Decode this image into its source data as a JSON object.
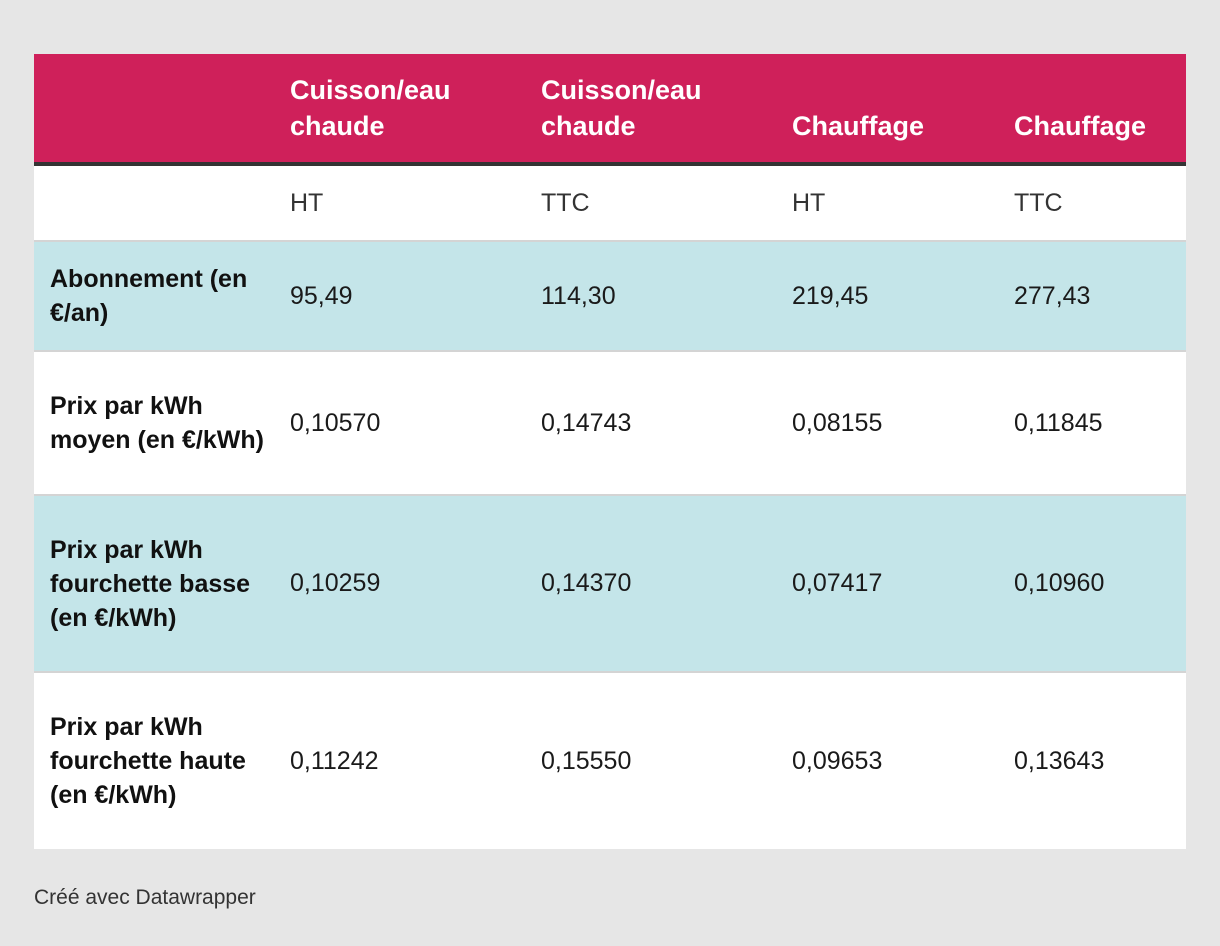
{
  "chart_data": {
    "type": "table",
    "columns": [
      "",
      "Cuisson/eau chaude",
      "Cuisson/eau chaude",
      "Chauffage",
      "Chauffage"
    ],
    "units": [
      "",
      "HT",
      "TTC",
      "HT",
      "TTC"
    ],
    "rows": [
      {
        "label": "Abonnement (en €/an)",
        "values": [
          "95,49",
          "114,30",
          "219,45",
          "277,43"
        ]
      },
      {
        "label": "Prix par kWh moyen (en €/kWh)",
        "values": [
          "0,10570",
          "0,14743",
          "0,08155",
          "0,11845"
        ]
      },
      {
        "label": "Prix par kWh fourchette basse (en €/kWh)",
        "values": [
          "0,10259",
          "0,14370",
          "0,07417",
          "0,10960"
        ]
      },
      {
        "label": "Prix par kWh fourchette haute (en €/kWh)",
        "values": [
          "0,11242",
          "0,15550",
          "0,09653",
          "0,13643"
        ]
      }
    ]
  },
  "footer": "Créé avec Datawrapper",
  "colors": {
    "header_bg": "#cf205a",
    "stripe_bg": "#c4e5e9",
    "page_bg": "#e6e6e6"
  }
}
